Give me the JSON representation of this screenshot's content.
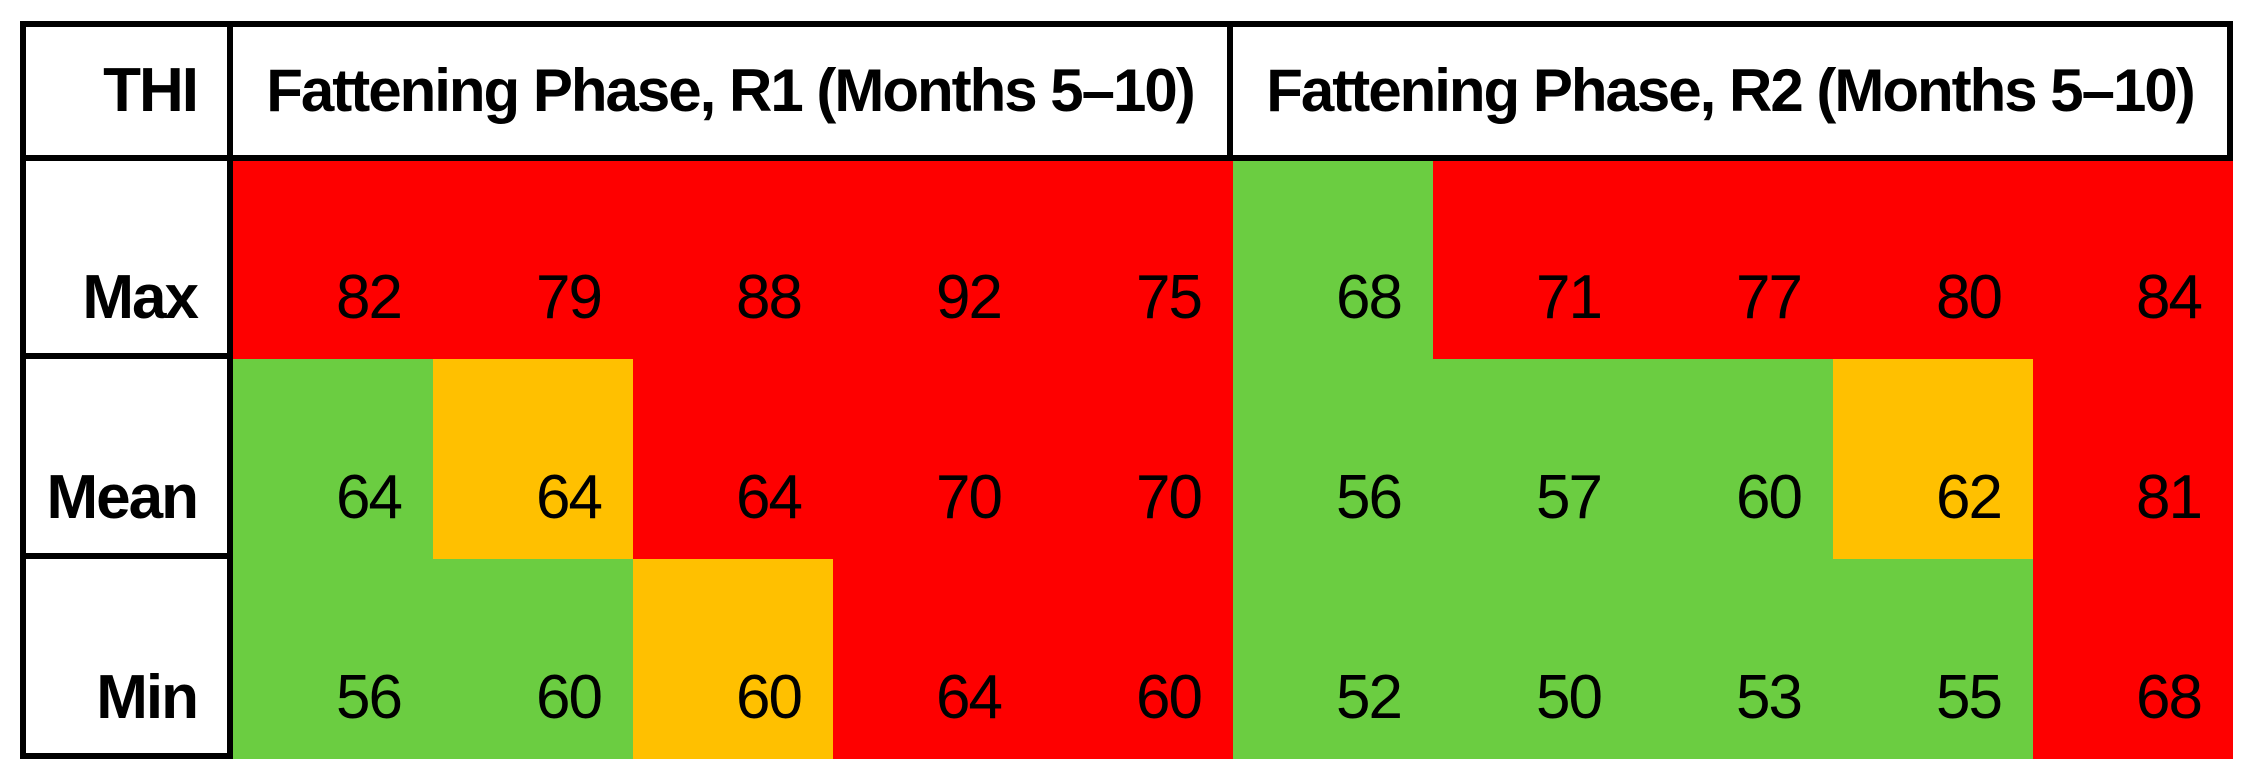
{
  "chart_data": {
    "type": "heatmap",
    "corner_label": "THI",
    "column_groups": [
      {
        "label": "Fattening Phase, R1 (Months 5–10)",
        "columns": 5
      },
      {
        "label": "Fattening Phase, R2 (Months 5–10)",
        "columns": 5
      }
    ],
    "row_labels": [
      "Max",
      "Mean",
      "Min"
    ],
    "series": [
      {
        "name": "R1",
        "values": {
          "Max": [
            82,
            79,
            88,
            92,
            75
          ],
          "Mean": [
            64,
            64,
            64,
            70,
            70
          ],
          "Min": [
            56,
            60,
            60,
            64,
            60
          ]
        }
      },
      {
        "name": "R2",
        "values": {
          "Max": [
            68,
            71,
            77,
            80,
            84
          ],
          "Mean": [
            56,
            57,
            60,
            62,
            81
          ],
          "Min": [
            52,
            50,
            53,
            55,
            68
          ]
        }
      }
    ],
    "rows": [
      {
        "label": "Max",
        "cells": [
          {
            "value": 82,
            "color": "red"
          },
          {
            "value": 79,
            "color": "red"
          },
          {
            "value": 88,
            "color": "red"
          },
          {
            "value": 92,
            "color": "red"
          },
          {
            "value": 75,
            "color": "red"
          },
          {
            "value": 68,
            "color": "green"
          },
          {
            "value": 71,
            "color": "red"
          },
          {
            "value": 77,
            "color": "red"
          },
          {
            "value": 80,
            "color": "red"
          },
          {
            "value": 84,
            "color": "red"
          }
        ]
      },
      {
        "label": "Mean",
        "cells": [
          {
            "value": 64,
            "color": "green"
          },
          {
            "value": 64,
            "color": "amber"
          },
          {
            "value": 64,
            "color": "red"
          },
          {
            "value": 70,
            "color": "red"
          },
          {
            "value": 70,
            "color": "red"
          },
          {
            "value": 56,
            "color": "green"
          },
          {
            "value": 57,
            "color": "green"
          },
          {
            "value": 60,
            "color": "green"
          },
          {
            "value": 62,
            "color": "amber"
          },
          {
            "value": 81,
            "color": "red"
          }
        ]
      },
      {
        "label": "Min",
        "cells": [
          {
            "value": 56,
            "color": "green"
          },
          {
            "value": 60,
            "color": "green"
          },
          {
            "value": 60,
            "color": "amber"
          },
          {
            "value": 64,
            "color": "red"
          },
          {
            "value": 60,
            "color": "red"
          },
          {
            "value": 52,
            "color": "green"
          },
          {
            "value": 50,
            "color": "green"
          },
          {
            "value": 53,
            "color": "green"
          },
          {
            "value": 55,
            "color": "green"
          },
          {
            "value": 68,
            "color": "red"
          }
        ]
      }
    ],
    "palette": {
      "green": "#6BCD41",
      "amber": "#FFC000",
      "red": "#FE0000"
    },
    "border_color": "#000000",
    "background_color": "#FFFFFF"
  }
}
